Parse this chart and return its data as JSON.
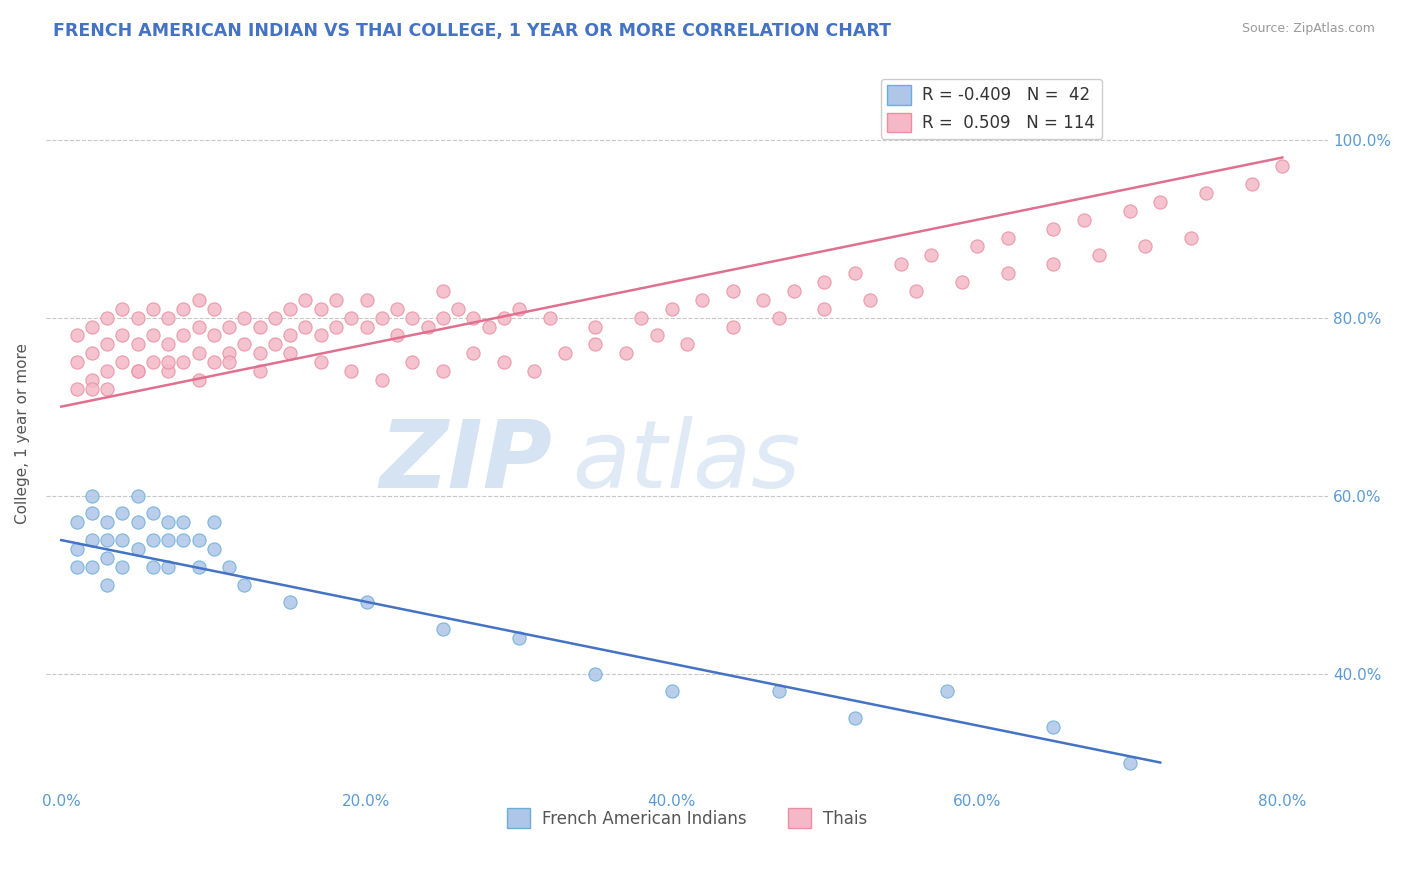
{
  "title": "FRENCH AMERICAN INDIAN VS THAI COLLEGE, 1 YEAR OR MORE CORRELATION CHART",
  "source": "Source: ZipAtlas.com",
  "ylabel": "College, 1 year or more",
  "legend_label_blue": "French American Indians",
  "legend_label_pink": "Thais",
  "blue_R": -0.409,
  "blue_N": 42,
  "pink_R": 0.509,
  "pink_N": 114,
  "blue_color": "#aec6e8",
  "blue_line_color": "#4472c4",
  "blue_edge_color": "#6baed6",
  "pink_color": "#f4b8c8",
  "pink_line_color": "#e07090",
  "pink_edge_color": "#e88fa0",
  "xlim": [
    -1,
    83
  ],
  "ylim": [
    27,
    107
  ],
  "xticks": [
    0,
    20,
    40,
    60,
    80
  ],
  "yticks": [
    40,
    60,
    80,
    100
  ],
  "tick_color": "#5b9bd5",
  "grid_color": "#c8c8c8",
  "blue_trend_x0": 0,
  "blue_trend_y0": 55,
  "blue_trend_x1": 72,
  "blue_trend_y1": 30,
  "pink_trend_x0": 0,
  "pink_trend_y0": 70,
  "pink_trend_x1": 80,
  "pink_trend_y1": 98,
  "blue_points_x": [
    1,
    1,
    1,
    2,
    2,
    2,
    2,
    3,
    3,
    3,
    3,
    4,
    4,
    4,
    5,
    5,
    5,
    6,
    6,
    6,
    7,
    7,
    7,
    8,
    8,
    9,
    9,
    10,
    10,
    11,
    12,
    15,
    20,
    25,
    30,
    35,
    40,
    47,
    52,
    58,
    65,
    70
  ],
  "blue_points_y": [
    57,
    54,
    52,
    60,
    58,
    55,
    52,
    57,
    55,
    53,
    50,
    58,
    55,
    52,
    60,
    57,
    54,
    58,
    55,
    52,
    57,
    55,
    52,
    57,
    55,
    55,
    52,
    57,
    54,
    52,
    50,
    48,
    48,
    45,
    44,
    40,
    38,
    38,
    35,
    38,
    34,
    30
  ],
  "pink_points_x": [
    1,
    1,
    1,
    2,
    2,
    2,
    2,
    3,
    3,
    3,
    4,
    4,
    4,
    5,
    5,
    5,
    6,
    6,
    6,
    7,
    7,
    7,
    8,
    8,
    8,
    9,
    9,
    9,
    10,
    10,
    10,
    11,
    11,
    12,
    12,
    13,
    13,
    14,
    14,
    15,
    15,
    16,
    16,
    17,
    17,
    18,
    18,
    19,
    20,
    20,
    21,
    22,
    22,
    23,
    24,
    25,
    25,
    26,
    27,
    28,
    29,
    30,
    32,
    35,
    38,
    40,
    42,
    44,
    46,
    48,
    50,
    52,
    55,
    57,
    60,
    62,
    65,
    67,
    70,
    72,
    75,
    78,
    80,
    3,
    5,
    7,
    9,
    11,
    13,
    15,
    17,
    19,
    21,
    23,
    25,
    27,
    29,
    31,
    33,
    35,
    37,
    39,
    41,
    44,
    47,
    50,
    53,
    56,
    59,
    62,
    65,
    68,
    71,
    74
  ],
  "pink_points_y": [
    72,
    75,
    78,
    73,
    76,
    79,
    72,
    74,
    77,
    80,
    75,
    78,
    81,
    74,
    77,
    80,
    75,
    78,
    81,
    74,
    77,
    80,
    75,
    78,
    81,
    76,
    79,
    82,
    75,
    78,
    81,
    76,
    79,
    77,
    80,
    76,
    79,
    77,
    80,
    78,
    81,
    79,
    82,
    78,
    81,
    79,
    82,
    80,
    79,
    82,
    80,
    78,
    81,
    80,
    79,
    80,
    83,
    81,
    80,
    79,
    80,
    81,
    80,
    79,
    80,
    81,
    82,
    83,
    82,
    83,
    84,
    85,
    86,
    87,
    88,
    89,
    90,
    91,
    92,
    93,
    94,
    95,
    97,
    72,
    74,
    75,
    73,
    75,
    74,
    76,
    75,
    74,
    73,
    75,
    74,
    76,
    75,
    74,
    76,
    77,
    76,
    78,
    77,
    79,
    80,
    81,
    82,
    83,
    84,
    85,
    86,
    87,
    88,
    89
  ]
}
